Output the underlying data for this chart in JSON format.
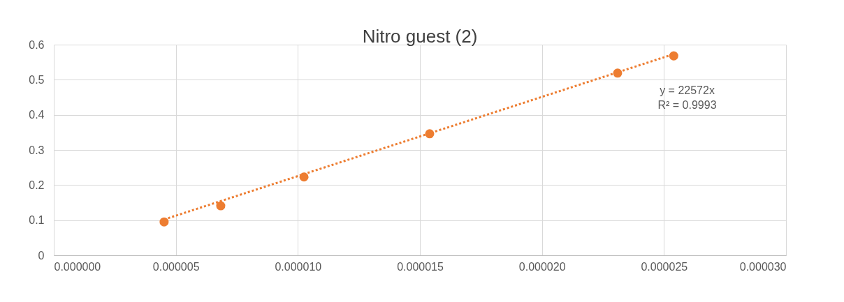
{
  "chart_data": {
    "type": "scatter",
    "title": "Nitro guest (2)",
    "x": [
      4.52e-06,
      6.84e-06,
      1.025e-05,
      1.54e-05,
      2.31e-05,
      2.54e-05
    ],
    "series": [
      {
        "color": "#ed7d31",
        "values": [
          0.095,
          0.141,
          0.223,
          0.346,
          0.519,
          0.568
        ]
      },
      {
        "type": "line",
        "color": "#ed7d31",
        "line_style": "dotted",
        "marker": "none",
        "x": [
          4.52e-06,
          2.54e-05
        ],
        "values": [
          0.102,
          0.573
        ]
      }
    ],
    "marker": "circle",
    "xlim": [
      0,
      3e-05
    ],
    "xticks": [
      {
        "value": 0,
        "label": "0.000000"
      },
      {
        "value": 5e-06,
        "label": "0.000005"
      },
      {
        "value": 1e-05,
        "label": "0.000010"
      },
      {
        "value": 1.5e-05,
        "label": "0.000015"
      },
      {
        "value": 2e-05,
        "label": "0.000020"
      },
      {
        "value": 2.5e-05,
        "label": "0.000025"
      },
      {
        "value": 3e-05,
        "label": "0.000030"
      }
    ],
    "ylim": [
      0,
      0.6
    ],
    "yticks": [
      0,
      0.1,
      0.2,
      0.3,
      0.4,
      0.5,
      0.6
    ],
    "grid": true,
    "annotations": [
      "y = 22572x",
      "R² = 0.9993"
    ]
  }
}
